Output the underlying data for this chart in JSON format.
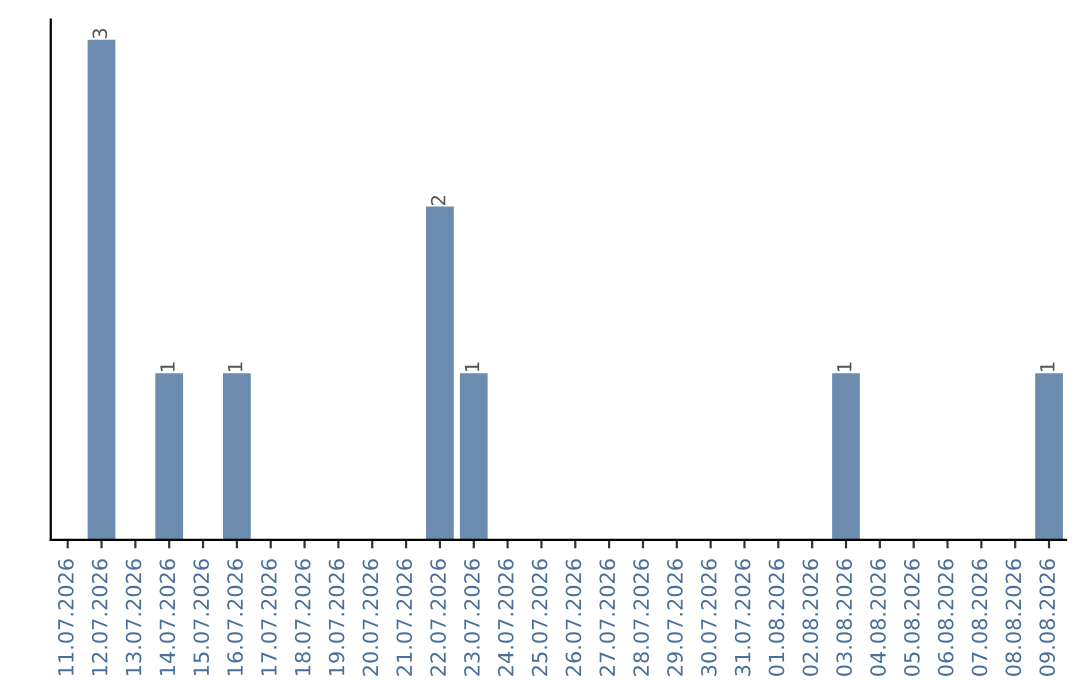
{
  "chart_data": {
    "type": "bar",
    "categories": [
      "11.07.2026",
      "12.07.2026",
      "13.07.2026",
      "14.07.2026",
      "15.07.2026",
      "16.07.2026",
      "17.07.2026",
      "18.07.2026",
      "19.07.2026",
      "20.07.2026",
      "21.07.2026",
      "22.07.2026",
      "23.07.2026",
      "24.07.2026",
      "25.07.2026",
      "26.07.2026",
      "27.07.2026",
      "28.07.2026",
      "29.07.2026",
      "30.07.2026",
      "31.07.2026",
      "01.08.2026",
      "02.08.2026",
      "03.08.2026",
      "04.08.2026",
      "05.08.2026",
      "06.08.2026",
      "07.08.2026",
      "08.08.2026",
      "09.08.2026"
    ],
    "values": [
      0,
      3,
      0,
      1,
      0,
      1,
      0,
      0,
      0,
      0,
      0,
      2,
      1,
      0,
      0,
      0,
      0,
      0,
      0,
      0,
      0,
      0,
      0,
      1,
      0,
      0,
      0,
      0,
      0,
      1
    ],
    "value_labels": [
      null,
      "3",
      null,
      "1",
      null,
      "1",
      null,
      null,
      null,
      null,
      null,
      "2",
      "1",
      null,
      null,
      null,
      null,
      null,
      null,
      null,
      null,
      null,
      null,
      "1",
      null,
      null,
      null,
      null,
      null,
      "1"
    ],
    "color": "#6b8cae",
    "tick_labels": "x",
    "grid": false,
    "legend": false
  }
}
